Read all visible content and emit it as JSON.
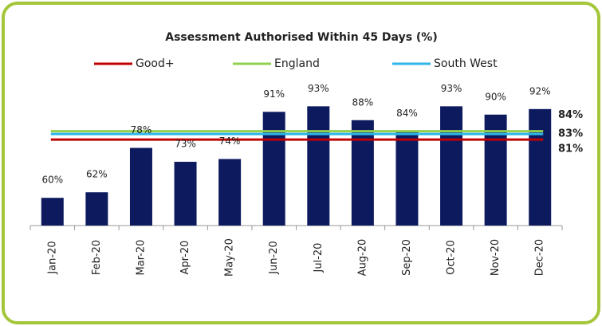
{
  "chart_data": {
    "type": "bar",
    "title": "Assessment Authorised Within 45 Days (%)",
    "categories": [
      "Jan-20",
      "Feb-20",
      "Mar-20",
      "Apr-20",
      "May-20",
      "Jun-20",
      "Jul-20",
      "Aug-20",
      "Sep-20",
      "Oct-20",
      "Nov-20",
      "Dec-20"
    ],
    "values": [
      60,
      62,
      78,
      73,
      74,
      91,
      93,
      88,
      84,
      93,
      90,
      92
    ],
    "value_labels": [
      "60%",
      "62%",
      "78%",
      "73%",
      "74%",
      "91%",
      "93%",
      "88%",
      "84%",
      "93%",
      "90%",
      "92%"
    ],
    "color": "#0d1b5e",
    "ylim": [
      50,
      100
    ],
    "reference_lines": [
      {
        "name": "Good+",
        "color": "#c00000",
        "value": 81,
        "value_label": "81%"
      },
      {
        "name": "England",
        "color": "#92d050",
        "value": 84,
        "value_label": "84%"
      },
      {
        "name": "South West",
        "color": "#2fb5e8",
        "value": 83,
        "value_label": "83%"
      }
    ]
  }
}
